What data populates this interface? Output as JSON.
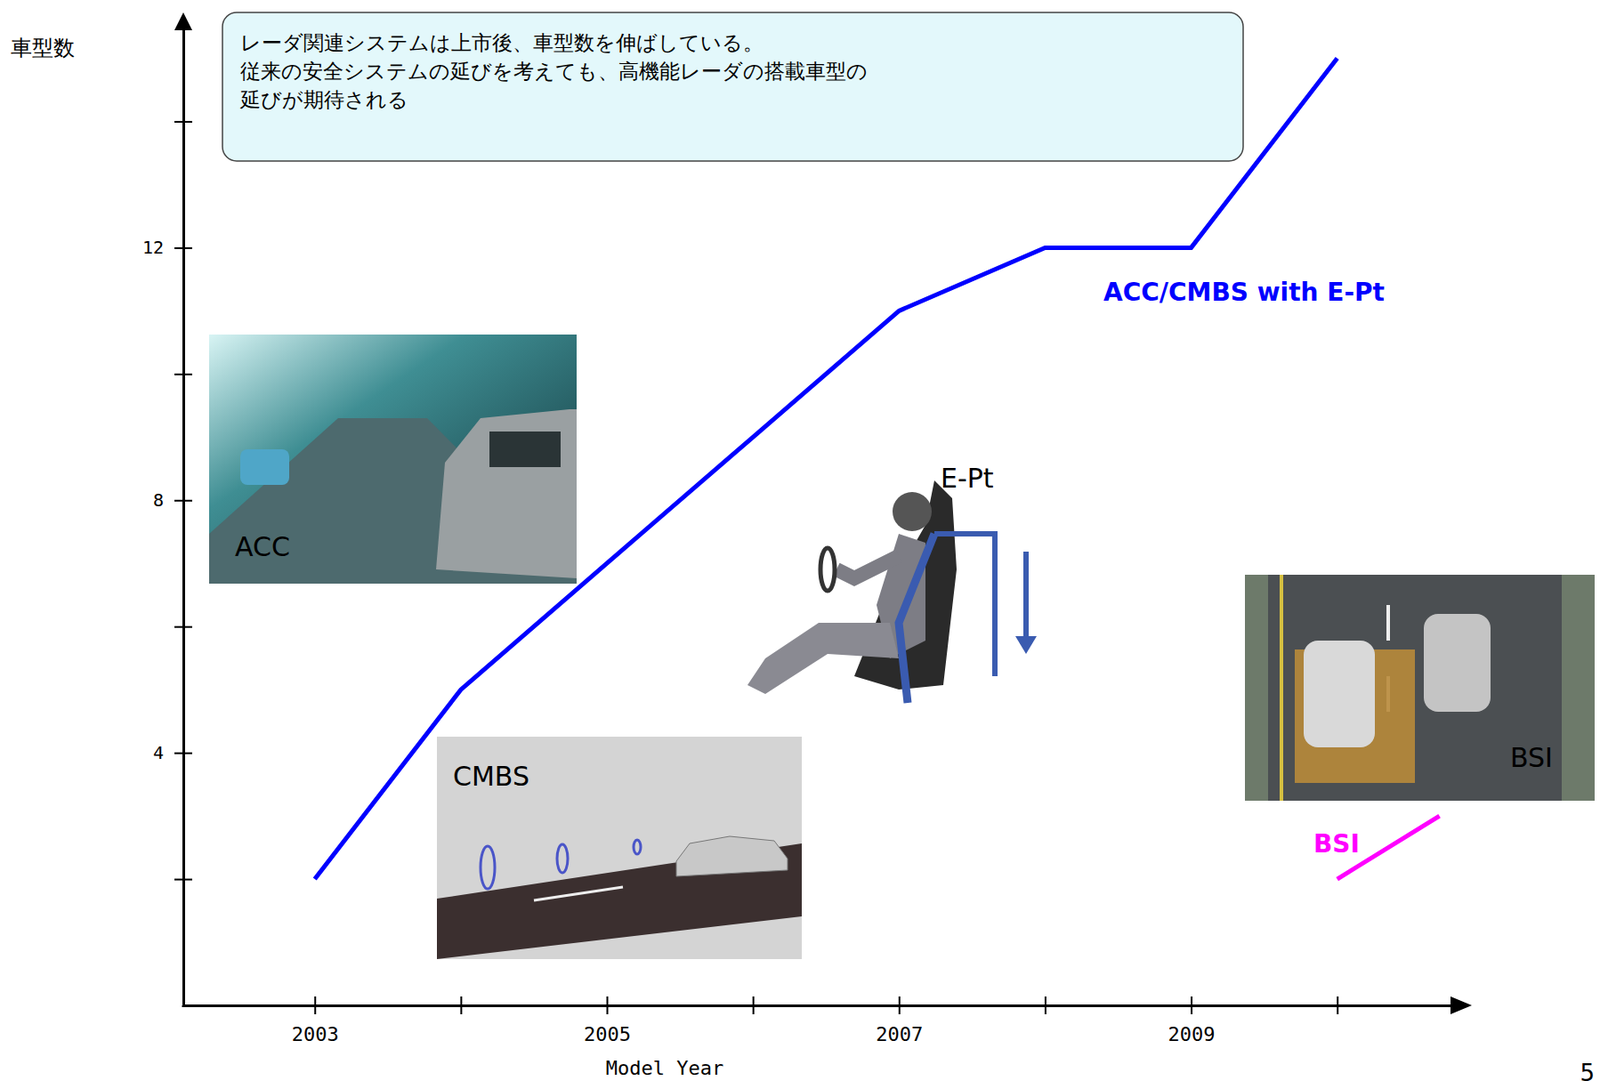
{
  "chart_data": {
    "type": "line",
    "y_label": "車型数",
    "x_label": "Model Year",
    "annotation": [
      "レーダ関連システムは上市後、車型数を伸ばしている。",
      "従来の安全システムの延びを考えても、高機能レーダの搭載車型の",
      "延びが期待される"
    ],
    "page_number": "5",
    "xlim": [
      2002.1,
      2010.8
    ],
    "xticks": [
      2003,
      {
        "value": 2004,
        "label": null
      },
      2005,
      {
        "value": 2006,
        "label": null
      },
      2007,
      {
        "value": 2008,
        "label": null
      },
      2009,
      {
        "value": 2010,
        "label": null
      }
    ],
    "ylim": [
      0,
      15.5
    ],
    "yticks": [
      {
        "value": 2,
        "label": null
      },
      4,
      {
        "value": 6,
        "label": null
      },
      8,
      {
        "value": 10,
        "label": null
      },
      12,
      {
        "value": 14,
        "label": null
      }
    ],
    "series": [
      {
        "name": "ACC/CMBS with E-Pt",
        "color": "#0000ff",
        "x": [
          2003,
          2004,
          2005,
          2006,
          2007,
          2008,
          2009,
          2010
        ],
        "values": [
          2,
          5,
          7,
          9,
          11,
          12,
          12,
          15
        ]
      },
      {
        "name": "BSI",
        "color": "#ff00ff",
        "x": [
          2010,
          2010.7
        ],
        "values": [
          2,
          3
        ]
      }
    ],
    "images": [
      {
        "label": "ACC"
      },
      {
        "label": "CMBS"
      },
      {
        "label": "E-Pt"
      },
      {
        "label": "BSI"
      }
    ]
  }
}
